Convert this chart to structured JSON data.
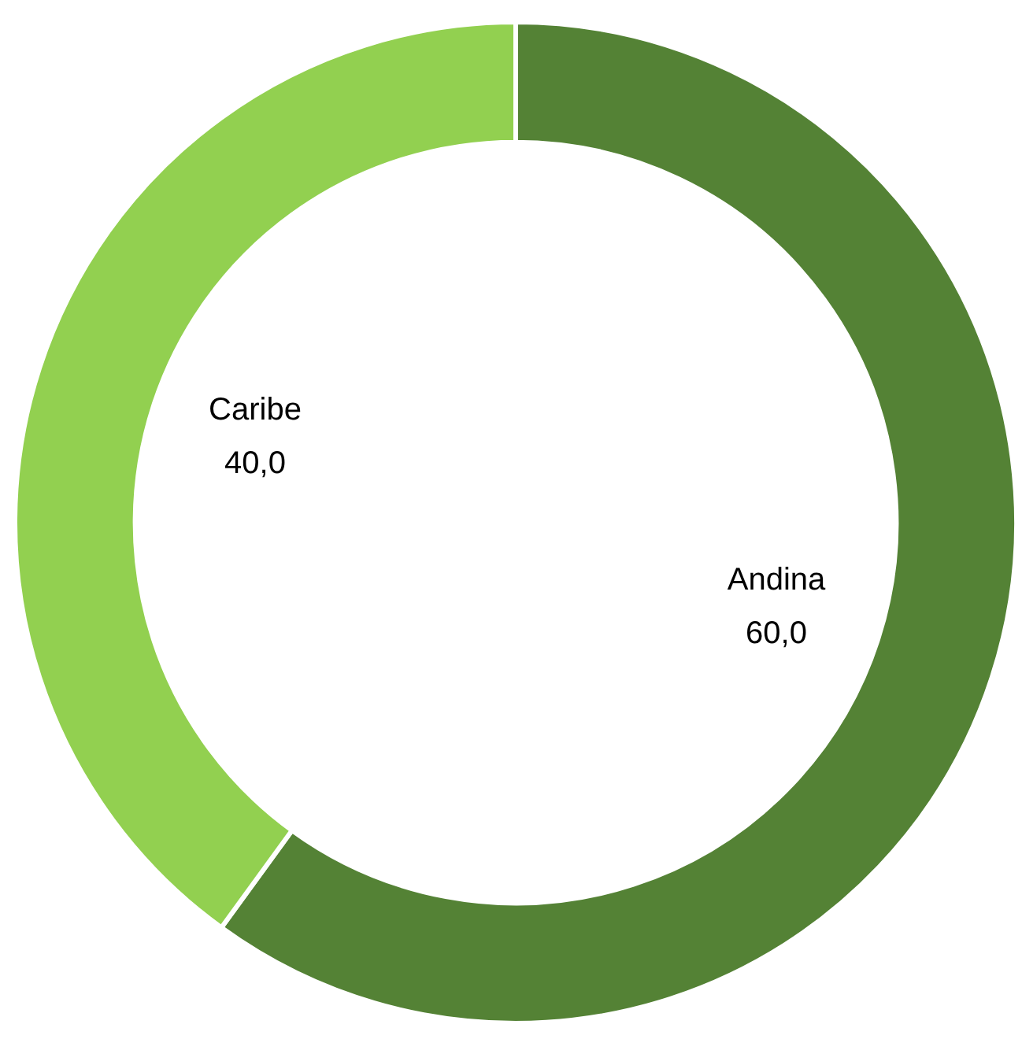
{
  "chart_data": {
    "type": "donut",
    "categories": [
      "Andina",
      "Caribe"
    ],
    "values": [
      60,
      40
    ],
    "colors": [
      "#548235",
      "#92d050"
    ],
    "value_labels": [
      "60,0",
      "40,0"
    ],
    "legend": false
  }
}
